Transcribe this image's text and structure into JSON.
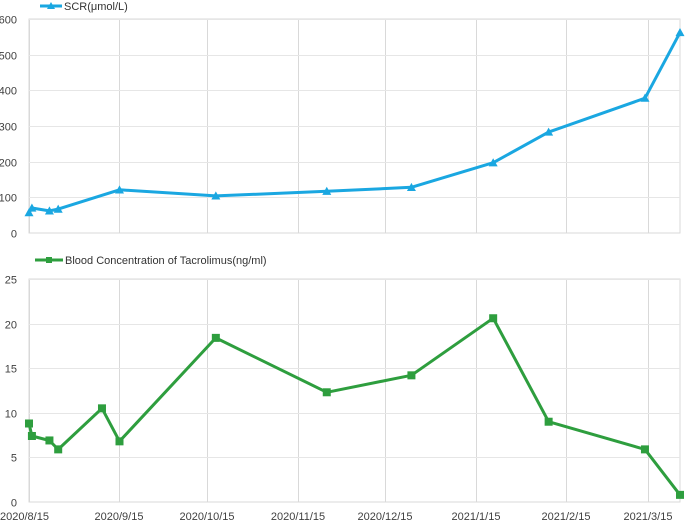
{
  "chart_data": [
    {
      "type": "line",
      "title": "",
      "xlabel": "",
      "ylabel": "",
      "ylim": [
        0,
        600
      ],
      "yticks": [
        0,
        100,
        200,
        300,
        400,
        500,
        600
      ],
      "xlim": [
        "2020/8/15",
        "2021/3/26"
      ],
      "grid": true,
      "legend": "top-left",
      "series": [
        {
          "name": "SCR(μmol/L)",
          "color": "#1aa7e1",
          "marker": "triangle",
          "x": [
            "2020/8/15",
            "2020/8/16",
            "2020/8/22",
            "2020/8/25",
            "2020/9/15",
            "2020/10/18",
            "2020/11/25",
            "2020/12/24",
            "2021/1/21",
            "2021/2/9",
            "2021/3/14",
            "2021/3/26"
          ],
          "values": [
            57,
            70,
            62,
            67,
            121,
            104,
            117,
            128,
            197,
            283,
            378,
            562
          ]
        }
      ]
    },
    {
      "type": "line",
      "title": "",
      "xlabel": "",
      "ylabel": "",
      "ylim": [
        0,
        25
      ],
      "yticks": [
        0,
        5,
        10,
        15,
        20,
        25
      ],
      "xlim": [
        "2020/8/15",
        "2021/3/26"
      ],
      "grid": true,
      "legend": "top-left",
      "xtick_labels": [
        "2020/8/15",
        "2020/9/15",
        "2020/10/15",
        "2020/11/15",
        "2020/12/15",
        "2021/1/15",
        "2021/2/15",
        "2021/3/15"
      ],
      "series": [
        {
          "name": "Blood Concentration of Tacrolimus(ng/ml)",
          "color": "#2e9e3e",
          "marker": "square",
          "x": [
            "2020/8/15",
            "2020/8/16",
            "2020/8/22",
            "2020/8/25",
            "2020/9/9",
            "2020/9/15",
            "2020/10/18",
            "2020/11/25",
            "2020/12/24",
            "2021/1/21",
            "2021/2/9",
            "2021/3/14",
            "2021/3/26"
          ],
          "values": [
            8.8,
            7.4,
            6.9,
            5.9,
            10.5,
            6.8,
            18.4,
            12.3,
            14.2,
            20.6,
            9.0,
            5.9,
            0.8
          ]
        }
      ]
    }
  ]
}
